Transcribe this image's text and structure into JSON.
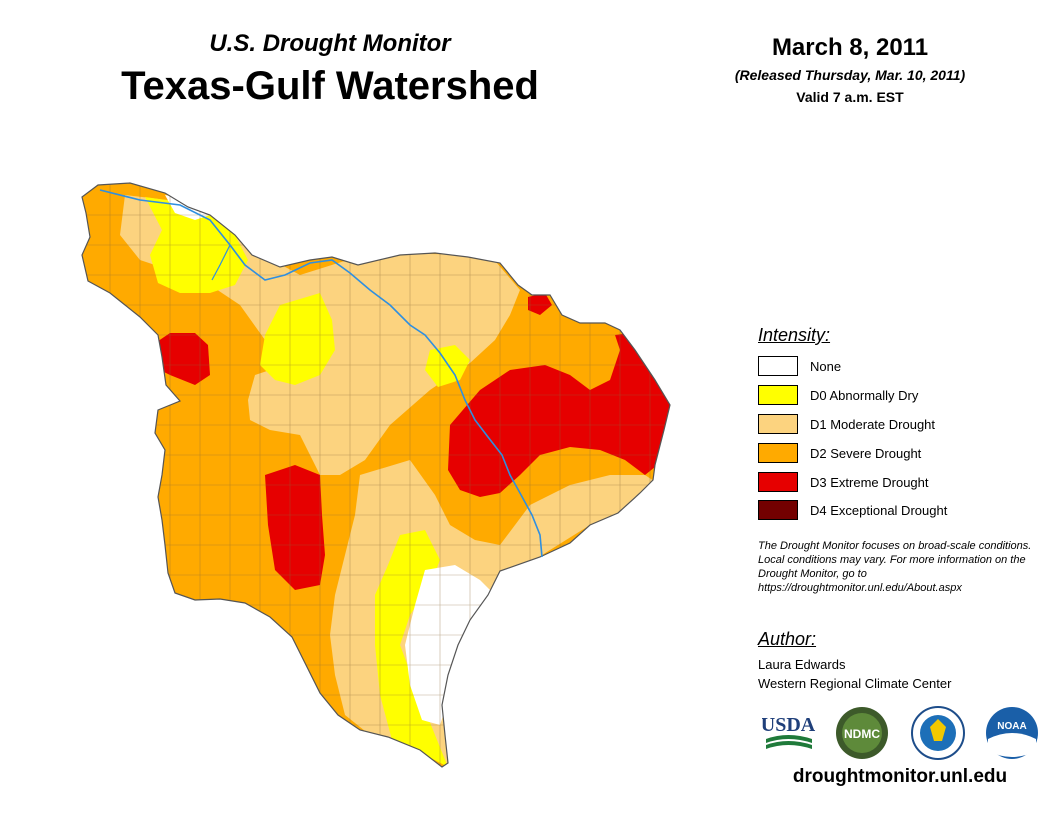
{
  "header": {
    "subtitle": "U.S. Drought Monitor",
    "title": "Texas-Gulf Watershed",
    "date": "March 8, 2011",
    "released": "(Released Thursday, Mar. 10, 2011)",
    "valid": "Valid 7 a.m. EST"
  },
  "legend": {
    "heading": "Intensity:",
    "items": [
      {
        "label": "None",
        "color": "#ffffff"
      },
      {
        "label": "D0 Abnormally Dry",
        "color": "#ffff00"
      },
      {
        "label": "D1 Moderate Drought",
        "color": "#fcd37f"
      },
      {
        "label": "D2 Severe Drought",
        "color": "#ffaa00"
      },
      {
        "label": "D3 Extreme Drought",
        "color": "#e60000"
      },
      {
        "label": "D4 Exceptional Drought",
        "color": "#730000"
      }
    ]
  },
  "note": "The Drought Monitor focuses on broad-scale conditions. Local conditions may vary. For more information on the Drought Monitor, go to https://droughtmonitor.unl.edu/About.aspx",
  "author": {
    "heading": "Author:",
    "name": "Laura Edwards",
    "org": "Western Regional Climate Center"
  },
  "logos": {
    "usda": "USDA",
    "ndmc": "NDMC",
    "noaa": "NOAA"
  },
  "website": "droughtmonitor.unl.edu",
  "colors": {
    "none": "#ffffff",
    "d0": "#ffff00",
    "d1": "#fcd37f",
    "d2": "#ffaa00",
    "d3": "#e60000",
    "d4": "#730000",
    "river": "#2f8fe0",
    "county_lines": "#8a6a3a"
  }
}
